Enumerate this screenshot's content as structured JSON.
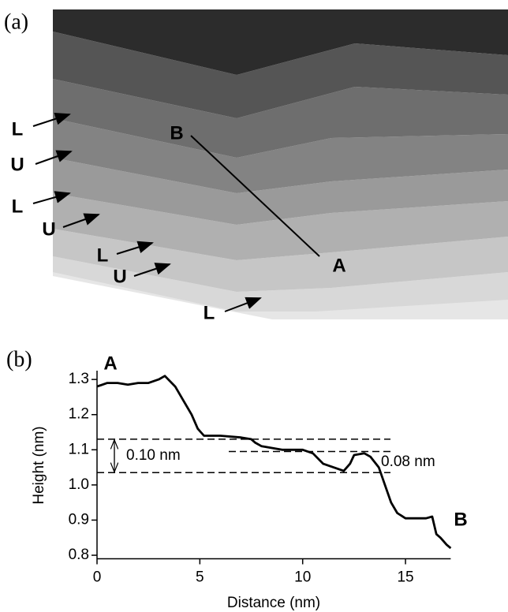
{
  "image_panel": {
    "label": "(a)",
    "labels": [
      "L",
      "U",
      "L",
      "U",
      "L",
      "U",
      "L",
      "B",
      "A"
    ]
  },
  "chart_data": {
    "type": "line",
    "label": "(b)",
    "xlabel": "Distance (nm)",
    "ylabel": "Height (nm)",
    "x": [
      0,
      0.5,
      1,
      1.5,
      2,
      2.5,
      3,
      3.3,
      3.8,
      4.2,
      4.6,
      4.9,
      5.2,
      6,
      7,
      7.5,
      7.7,
      8,
      9,
      10,
      10.5,
      11,
      11.5,
      12,
      12.3,
      12.5,
      13,
      13.3,
      13.7,
      14,
      14.3,
      14.6,
      15,
      15.5,
      16,
      16.3,
      16.5,
      16.7,
      17,
      17.2
    ],
    "values": [
      1.28,
      1.29,
      1.29,
      1.285,
      1.29,
      1.29,
      1.3,
      1.31,
      1.28,
      1.24,
      1.2,
      1.16,
      1.14,
      1.14,
      1.135,
      1.13,
      1.12,
      1.11,
      1.1,
      1.1,
      1.09,
      1.06,
      1.05,
      1.04,
      1.06,
      1.085,
      1.09,
      1.08,
      1.05,
      1.0,
      0.95,
      0.92,
      0.905,
      0.905,
      0.905,
      0.91,
      0.86,
      0.85,
      0.83,
      0.82
    ],
    "color": "#000000",
    "xlim": [
      0,
      17.2
    ],
    "ylim": [
      0.79,
      1.325
    ],
    "xticks": [
      0,
      5,
      10,
      15
    ],
    "yticks": [
      0.8,
      0.9,
      {
        "value": 1,
        "label": "1.0"
      },
      1.1,
      1.2,
      1.3
    ],
    "hlines": [
      1.13,
      1.035,
      1.095
    ],
    "annotations": [
      "0.10 nm",
      "0.08 nm",
      "A",
      "B"
    ]
  }
}
